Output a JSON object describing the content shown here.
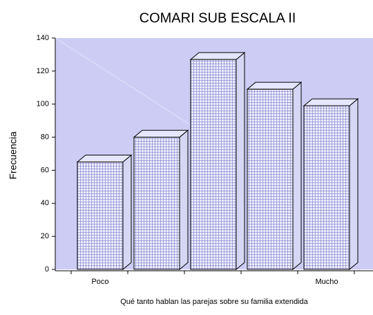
{
  "chart_data": {
    "type": "bar",
    "title": "COMARI SUB ESCALA II",
    "x_label": "Qué tanto hablan las parejas sobre su familia extendida",
    "y_label": "Frecuencia",
    "categories": [
      "Poco",
      null,
      null,
      null,
      "Mucho"
    ],
    "values": [
      65,
      80,
      127,
      109,
      99
    ],
    "color": "#e6e6ff",
    "ylim": [
      0,
      140
    ],
    "yticks": [
      0,
      20,
      40,
      60,
      80,
      100,
      120,
      140
    ],
    "plot_background": "#ccccf5"
  }
}
